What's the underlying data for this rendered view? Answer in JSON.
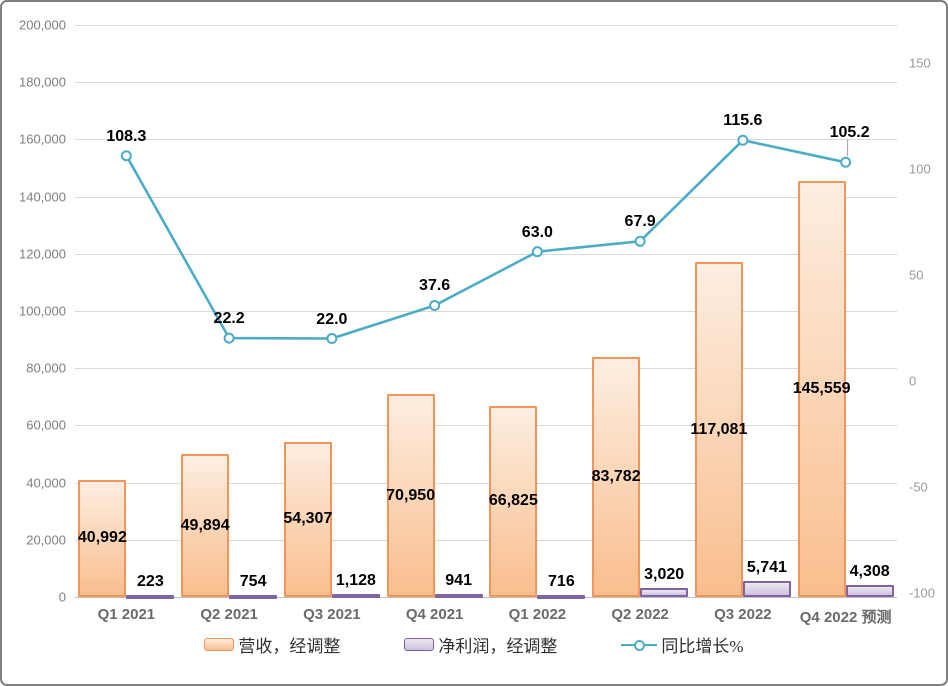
{
  "chart_data": {
    "type": "combo",
    "categories": [
      "Q1 2021",
      "Q2 2021",
      "Q3 2021",
      "Q4 2021",
      "Q1 2022",
      "Q2 2022",
      "Q3 2022",
      "Q4 2022 预测"
    ],
    "series": [
      {
        "name": "营收，经调整",
        "type": "bar",
        "axis": "left",
        "values": [
          40992,
          49894,
          54307,
          70950,
          66825,
          83782,
          117081,
          145559
        ],
        "labels": [
          "40,992",
          "49,894",
          "54,307",
          "70,950",
          "66,825",
          "83,782",
          "117,081",
          "145,559"
        ],
        "border_color": "#F2955A",
        "fill_top": "#FDEEE1",
        "fill_bottom": "#F9BE8E",
        "label_position": "inside-center"
      },
      {
        "name": "净利润，经调整",
        "type": "bar",
        "axis": "left",
        "values": [
          223,
          754,
          1128,
          941,
          716,
          3020,
          5741,
          4308
        ],
        "labels": [
          "223",
          "754",
          "1,128",
          "941",
          "716",
          "3,020",
          "5,741",
          "4,308"
        ],
        "border_color": "#8064A2",
        "fill_top": "#ECE8F2",
        "fill_bottom": "#CDC2DF",
        "label_position": "outside-top"
      },
      {
        "name": "同比增长%",
        "type": "line",
        "axis": "right",
        "values": [
          108.3,
          22.2,
          22.0,
          37.6,
          63.0,
          67.9,
          115.6,
          105.2
        ],
        "labels": [
          "108.3",
          "22.2",
          "22.0",
          "37.6",
          "63.0",
          "67.9",
          "115.6",
          "105.2"
        ],
        "color": "#4BACC6",
        "marker_fill": "#FFFFFF",
        "leader_line_index": 7
      }
    ],
    "left_axis": {
      "min": 0,
      "max": 200000,
      "step": 20000,
      "tick_labels_top_to_bottom": [
        "200,000",
        "180,000",
        "160,000",
        "140,000",
        "120,000",
        "100,000",
        "80,000",
        "60,000",
        "40,000",
        "20,000",
        "0"
      ]
    },
    "right_axis": {
      "min": -100,
      "max": 170,
      "ticks": [
        150,
        100,
        50,
        0,
        -50,
        -100
      ],
      "tick_labels": [
        "150",
        "100",
        "50",
        "0",
        "-50",
        "-100"
      ]
    },
    "grid": true,
    "legend_position": "bottom",
    "colors": {
      "gridline": "#D9D9D9",
      "axis_line": "#BFBFBF",
      "tick_label": "#7F7F7F",
      "category_label": "#6A6A6A",
      "data_label": "#000000",
      "line": "#4BACC6",
      "leader_line": "#A0A0A0",
      "frame_border": "#808080",
      "background": "#FFFFFF"
    }
  }
}
